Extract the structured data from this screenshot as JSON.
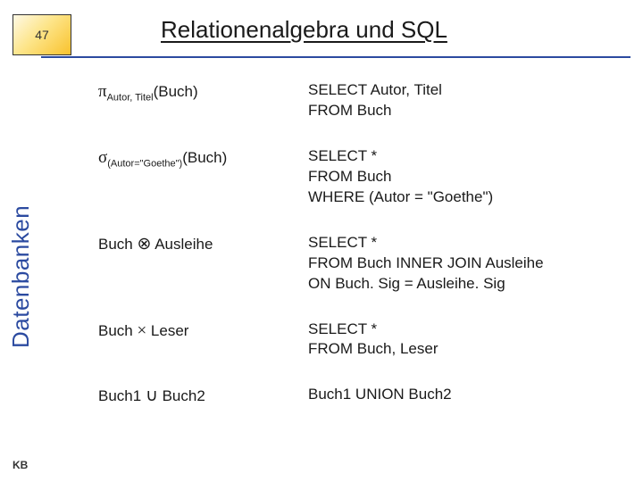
{
  "slide": {
    "number": "47",
    "title": "Relationenalgebra und SQL",
    "sidebar_label": "Datenbanken",
    "footer": "KB",
    "colors": {
      "accent": "#2b4aa0",
      "box_gradient_start": "#fef9e6",
      "box_gradient_mid": "#fde58a",
      "box_gradient_end": "#f9c22d",
      "text": "#1a1a1a",
      "background": "#ffffff"
    }
  },
  "rows": [
    {
      "algebra_prefix_sym": "π",
      "algebra_sub": "Autor, Titel",
      "algebra_suffix": "(Buch)",
      "sql": "SELECT Autor, Titel\nFROM Buch"
    },
    {
      "algebra_prefix_sym": "σ",
      "algebra_sub": "(Autor=\"Goethe\")",
      "algebra_suffix": "(Buch)",
      "sql": "SELECT *\nFROM Buch\nWHERE (Autor = \"Goethe\")"
    },
    {
      "algebra_plain_left": "Buch ",
      "algebra_plain_sym": "⊗",
      "algebra_plain_right": " Ausleihe",
      "sql": "SELECT *\nFROM Buch INNER JOIN Ausleihe\nON Buch. Sig = Ausleihe. Sig"
    },
    {
      "algebra_plain_left": "Buch ",
      "algebra_plain_sym": "×",
      "algebra_plain_right": " Leser",
      "sql": "SELECT *\nFROM Buch, Leser"
    },
    {
      "algebra_plain_left": "Buch1 ",
      "algebra_plain_sym": "∪",
      "algebra_plain_right": " Buch2",
      "sql": "Buch1 UNION Buch2"
    }
  ]
}
